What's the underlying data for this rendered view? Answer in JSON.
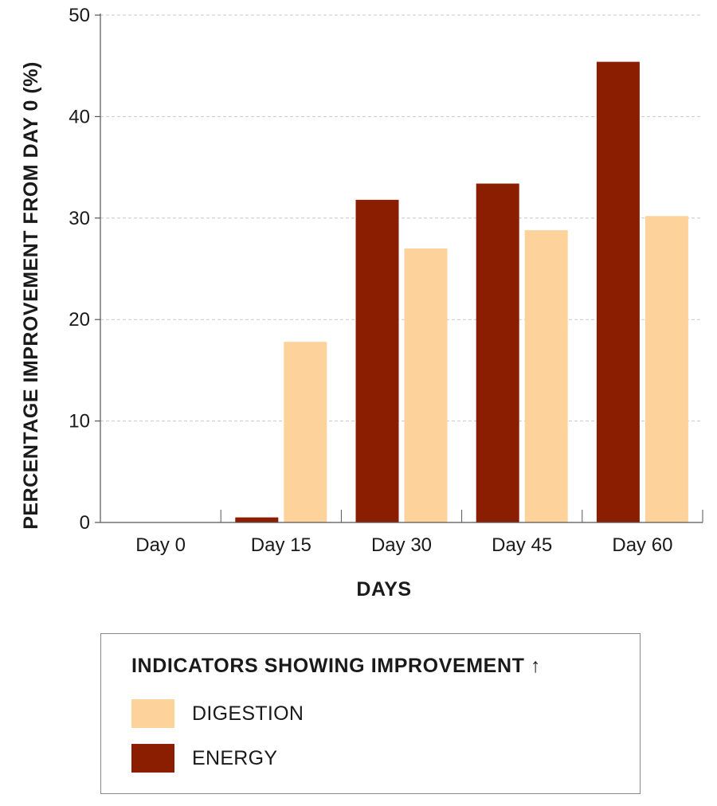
{
  "chart_data": {
    "type": "bar",
    "categories": [
      "Day 0",
      "Day 15",
      "Day 30",
      "Day 45",
      "Day 60"
    ],
    "series": [
      {
        "name": "ENERGY",
        "color": "#8b1e00",
        "values": [
          0,
          0.5,
          31.8,
          33.4,
          45.4
        ]
      },
      {
        "name": "DIGESTION",
        "color": "#fdd29b",
        "values": [
          0,
          17.8,
          27.0,
          28.8,
          30.2
        ]
      }
    ],
    "xlabel": "DAYS",
    "ylabel": "PERCENTAGE IMPROVEMENT FROM DAY 0 (%)",
    "ylim": [
      0,
      50
    ],
    "yticks": [
      0,
      10,
      20,
      30,
      40,
      50
    ],
    "grid": true,
    "legend_position": "bottom"
  },
  "legend": {
    "title": "INDICATORS SHOWING IMPROVEMENT ↑",
    "items": [
      {
        "label": "DIGESTION",
        "color": "#fdd29b"
      },
      {
        "label": "ENERGY",
        "color": "#8b1e00"
      }
    ]
  }
}
